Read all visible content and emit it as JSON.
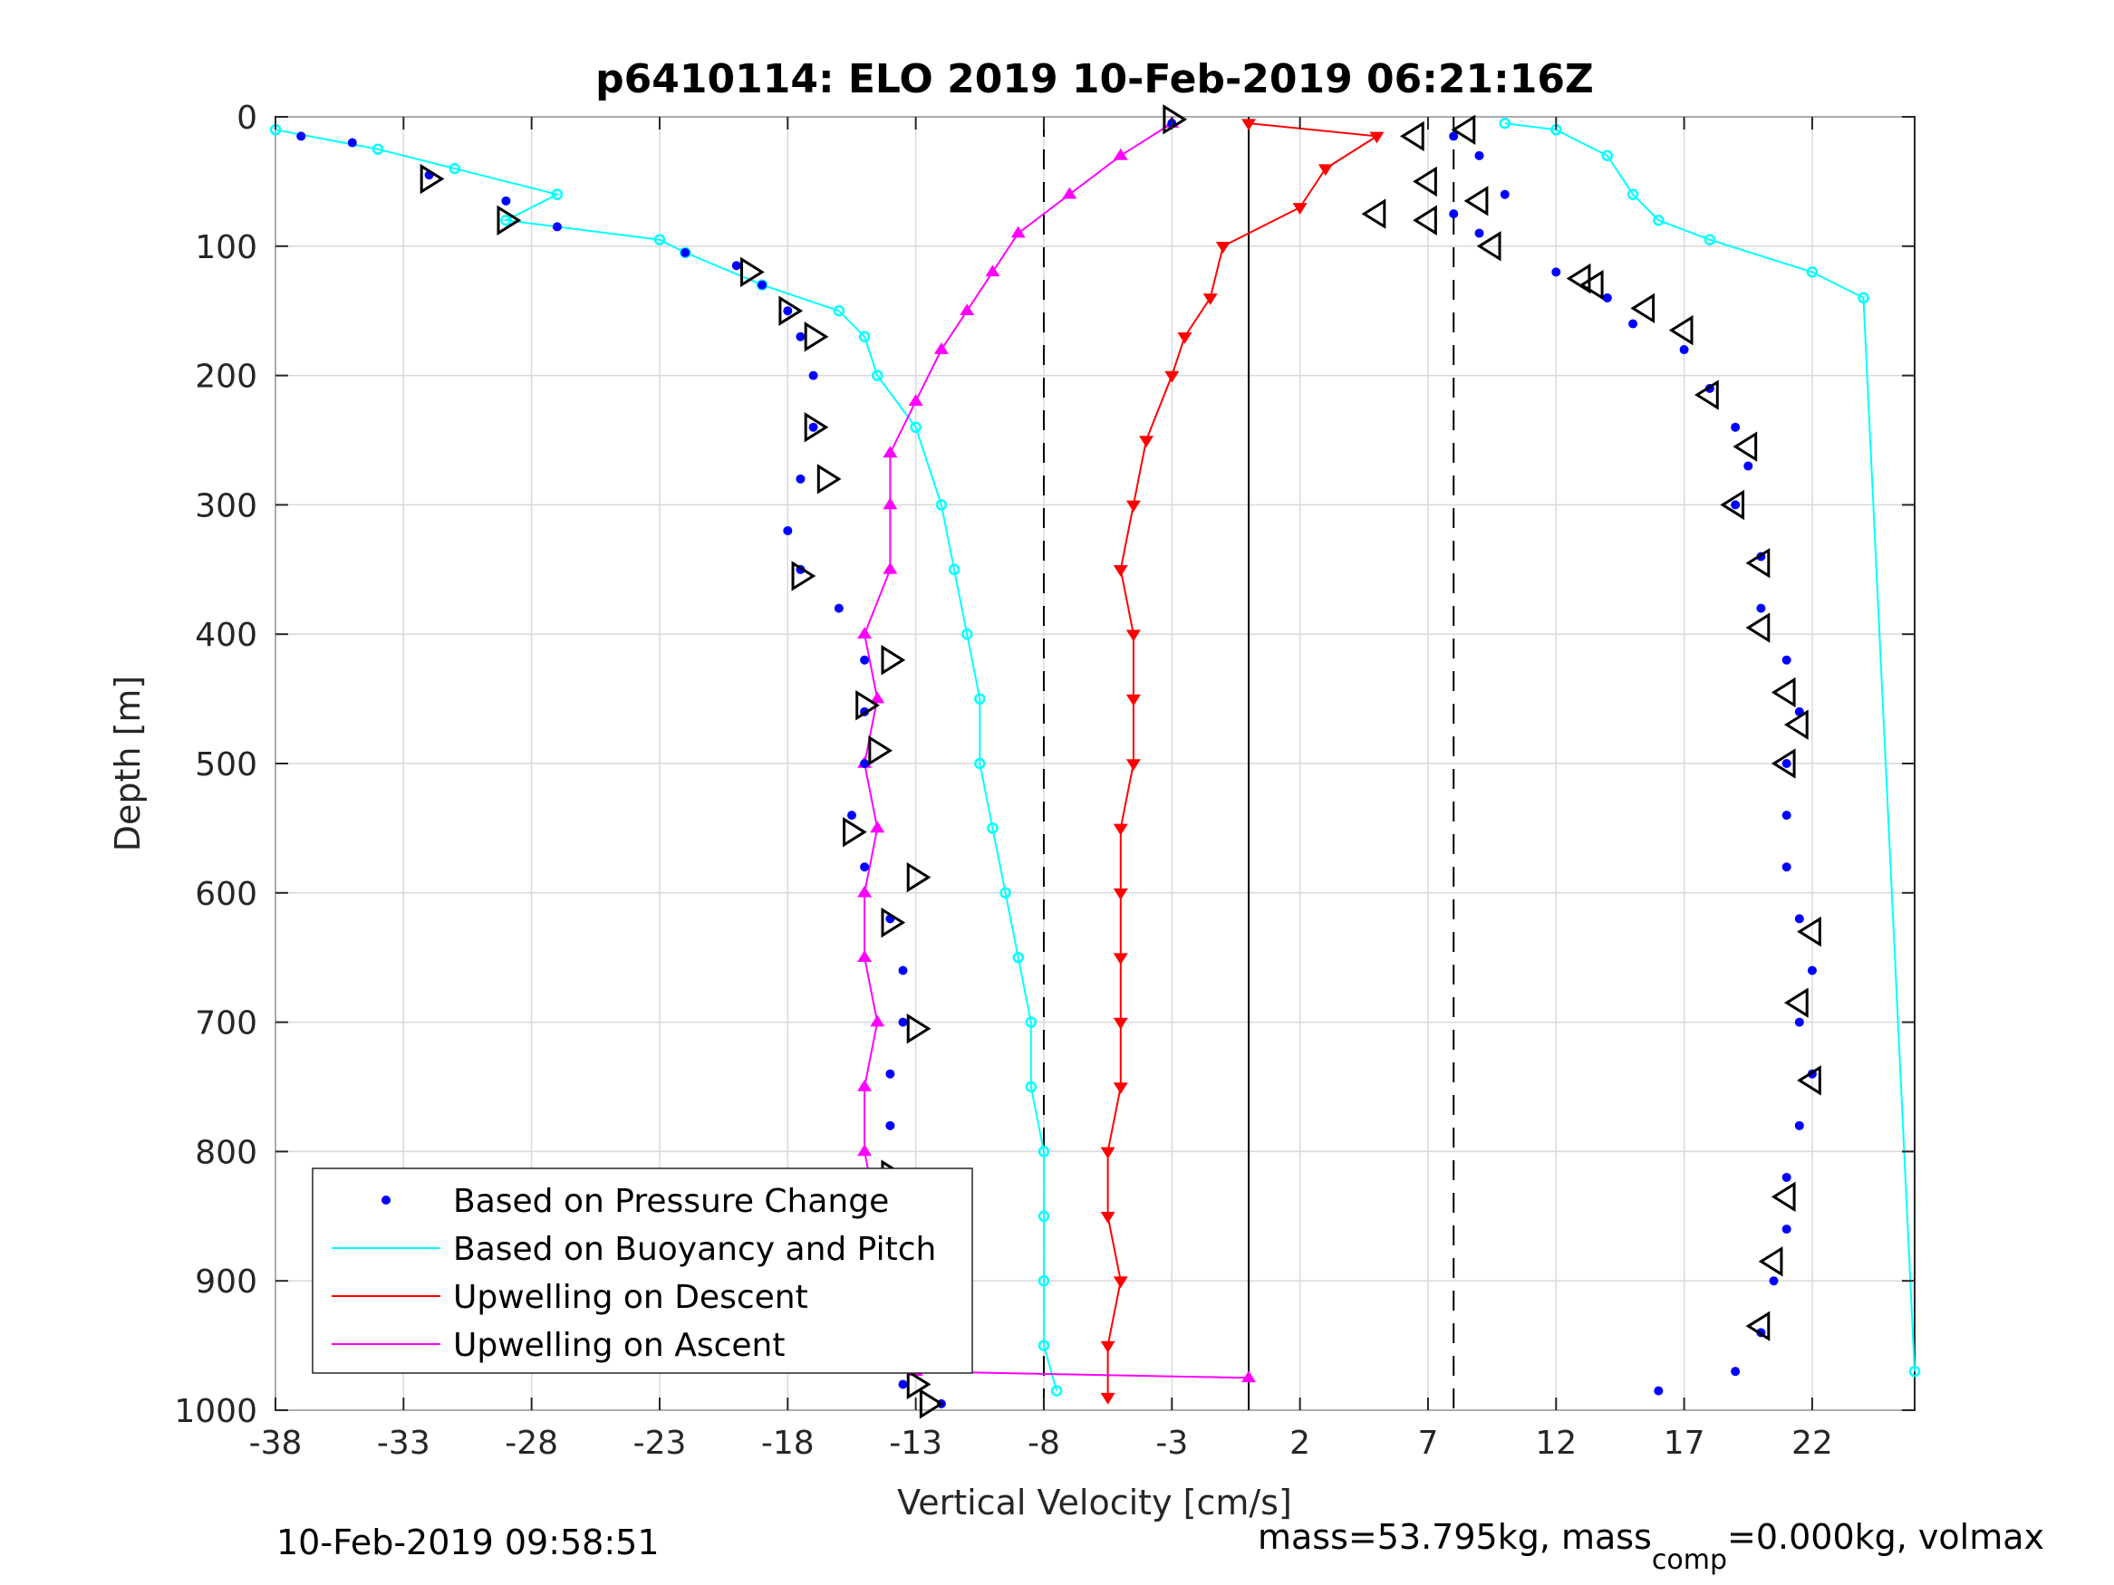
{
  "chart_data": {
    "type": "scatter",
    "title": "p6410114: ELO 2019 10-Feb-2019 06:21:16Z",
    "xlabel": "Vertical Velocity [cm/s]",
    "ylabel": "Depth [m]",
    "xlim": [
      -38,
      26
    ],
    "ylim": [
      0,
      1000
    ],
    "y_reversed": true,
    "grid": true,
    "x_ticks": [
      -38,
      -33,
      -28,
      -23,
      -18,
      -13,
      -8,
      -3,
      2,
      7,
      12,
      17,
      22
    ],
    "y_ticks": [
      0,
      100,
      200,
      300,
      400,
      500,
      600,
      700,
      800,
      900,
      1000
    ],
    "reference_lines": [
      {
        "x": -8,
        "style": "dashed"
      },
      {
        "x": 0,
        "style": "solid"
      },
      {
        "x": 8,
        "style": "dashed"
      }
    ],
    "legend_position": "bottom-left",
    "series": [
      {
        "name": "Based on Pressure Change",
        "color": "#0000ff",
        "marker": "dot",
        "descent": [
          [
            -37,
            15
          ],
          [
            -35,
            20
          ],
          [
            -32,
            45
          ],
          [
            -29,
            65
          ],
          [
            -27,
            85
          ],
          [
            -22,
            105
          ],
          [
            -20,
            115
          ],
          [
            -19,
            130
          ],
          [
            -18,
            150
          ],
          [
            -17.5,
            170
          ],
          [
            -17,
            200
          ],
          [
            -17,
            240
          ],
          [
            -17.5,
            280
          ],
          [
            -18,
            320
          ],
          [
            -17.5,
            350
          ],
          [
            -16,
            380
          ],
          [
            -15,
            420
          ],
          [
            -15,
            460
          ],
          [
            -15,
            500
          ],
          [
            -15.5,
            540
          ],
          [
            -15,
            580
          ],
          [
            -14,
            620
          ],
          [
            -13.5,
            660
          ],
          [
            -13.5,
            700
          ],
          [
            -14,
            740
          ],
          [
            -14,
            780
          ],
          [
            -14,
            820
          ],
          [
            -13.5,
            860
          ],
          [
            -13.5,
            900
          ],
          [
            -14,
            940
          ],
          [
            -13.5,
            980
          ],
          [
            -12,
            995
          ]
        ],
        "ascent": [
          [
            -3,
            5
          ],
          [
            8,
            15
          ],
          [
            9,
            30
          ],
          [
            10,
            60
          ],
          [
            8,
            75
          ],
          [
            9,
            90
          ],
          [
            12,
            120
          ],
          [
            14,
            140
          ],
          [
            15,
            160
          ],
          [
            17,
            180
          ],
          [
            18,
            210
          ],
          [
            19,
            240
          ],
          [
            19.5,
            270
          ],
          [
            19,
            300
          ],
          [
            20,
            340
          ],
          [
            20,
            380
          ],
          [
            21,
            420
          ],
          [
            21.5,
            460
          ],
          [
            21,
            500
          ],
          [
            21,
            540
          ],
          [
            21,
            580
          ],
          [
            21.5,
            620
          ],
          [
            22,
            660
          ],
          [
            21.5,
            700
          ],
          [
            22,
            740
          ],
          [
            21.5,
            780
          ],
          [
            21,
            820
          ],
          [
            21,
            860
          ],
          [
            20.5,
            900
          ],
          [
            20,
            940
          ],
          [
            19,
            970
          ],
          [
            16,
            985
          ]
        ],
        "triangles": [
          [
            -3,
            2
          ],
          [
            6.5,
            15
          ],
          [
            8.5,
            10
          ],
          [
            7,
            50
          ],
          [
            9,
            65
          ],
          [
            5,
            75
          ],
          [
            7,
            80
          ],
          [
            9.5,
            100
          ],
          [
            -32,
            48
          ],
          [
            -29,
            80
          ],
          [
            -19.5,
            120
          ],
          [
            -18,
            150
          ],
          [
            -17,
            170
          ],
          [
            -17,
            240
          ],
          [
            -16.5,
            280
          ],
          [
            -17.5,
            355
          ],
          [
            -14,
            420
          ],
          [
            -15,
            455
          ],
          [
            -14.5,
            490
          ],
          [
            -15.5,
            553
          ],
          [
            -13,
            588
          ],
          [
            -14,
            623
          ],
          [
            -13,
            705
          ],
          [
            -14,
            818
          ],
          [
            -12.5,
            900
          ],
          [
            -13,
            980
          ],
          [
            -12.5,
            995
          ],
          [
            13,
            125
          ],
          [
            13.5,
            130
          ],
          [
            15.5,
            148
          ],
          [
            17,
            165
          ],
          [
            18,
            215
          ],
          [
            19.5,
            255
          ],
          [
            19,
            300
          ],
          [
            20,
            345
          ],
          [
            20,
            395
          ],
          [
            21,
            445
          ],
          [
            21.5,
            470
          ],
          [
            21,
            500
          ],
          [
            22,
            630
          ],
          [
            21.5,
            685
          ],
          [
            22,
            745
          ],
          [
            21,
            835
          ],
          [
            20.5,
            885
          ],
          [
            20,
            935
          ]
        ]
      },
      {
        "name": "Based on Buoyancy and Pitch",
        "color": "#00ffff",
        "marker": "circle",
        "descent": [
          [
            -38,
            10
          ],
          [
            -34,
            25
          ],
          [
            -31,
            40
          ],
          [
            -27,
            60
          ],
          [
            -29,
            80
          ],
          [
            -23,
            95
          ],
          [
            -22,
            105
          ],
          [
            -19,
            130
          ],
          [
            -16,
            150
          ],
          [
            -15,
            170
          ],
          [
            -14.5,
            200
          ],
          [
            -13,
            240
          ],
          [
            -12,
            300
          ],
          [
            -11.5,
            350
          ],
          [
            -11,
            400
          ],
          [
            -10.5,
            450
          ],
          [
            -10.5,
            500
          ],
          [
            -10,
            550
          ],
          [
            -9.5,
            600
          ],
          [
            -9,
            650
          ],
          [
            -8.5,
            700
          ],
          [
            -8.5,
            750
          ],
          [
            -8,
            800
          ],
          [
            -8,
            850
          ],
          [
            -8,
            900
          ],
          [
            -8,
            950
          ],
          [
            -7.5,
            985
          ]
        ],
        "ascent": [
          [
            26,
            970
          ],
          [
            24,
            140
          ],
          [
            22,
            120
          ],
          [
            18,
            95
          ],
          [
            16,
            80
          ],
          [
            15,
            60
          ],
          [
            14,
            30
          ],
          [
            12,
            10
          ],
          [
            10,
            5
          ]
        ]
      },
      {
        "name": "Upwelling on Descent",
        "color": "#ff0000",
        "marker": "triangle-down",
        "values": [
          [
            0,
            5
          ],
          [
            5,
            15
          ],
          [
            3,
            40
          ],
          [
            2,
            70
          ],
          [
            -1,
            100
          ],
          [
            -1.5,
            140
          ],
          [
            -2.5,
            170
          ],
          [
            -3,
            200
          ],
          [
            -4,
            250
          ],
          [
            -4.5,
            300
          ],
          [
            -5,
            350
          ],
          [
            -4.5,
            400
          ],
          [
            -4.5,
            450
          ],
          [
            -4.5,
            500
          ],
          [
            -5,
            550
          ],
          [
            -5,
            600
          ],
          [
            -5,
            650
          ],
          [
            -5,
            700
          ],
          [
            -5,
            750
          ],
          [
            -5.5,
            800
          ],
          [
            -5.5,
            850
          ],
          [
            -5,
            900
          ],
          [
            -5.5,
            950
          ],
          [
            -5.5,
            990
          ]
        ]
      },
      {
        "name": "Upwelling on Ascent",
        "color": "#ff00ff",
        "marker": "triangle-up",
        "values": [
          [
            -3,
            5
          ],
          [
            -5,
            30
          ],
          [
            -7,
            60
          ],
          [
            -9,
            90
          ],
          [
            -10,
            120
          ],
          [
            -11,
            150
          ],
          [
            -12,
            180
          ],
          [
            -13,
            220
          ],
          [
            -14,
            260
          ],
          [
            -14,
            300
          ],
          [
            -14,
            350
          ],
          [
            -15,
            400
          ],
          [
            -14.5,
            450
          ],
          [
            -15,
            500
          ],
          [
            -14.5,
            550
          ],
          [
            -15,
            600
          ],
          [
            -15,
            650
          ],
          [
            -14.5,
            700
          ],
          [
            -15,
            750
          ],
          [
            -15,
            800
          ],
          [
            -14.5,
            850
          ],
          [
            -14,
            900
          ],
          [
            -14,
            950
          ],
          [
            -13,
            970
          ],
          [
            0,
            975
          ]
        ]
      }
    ]
  },
  "footer": {
    "timestamp": "10-Feb-2019 09:58:51",
    "mass_prefix": "mass=53.795kg, mass",
    "mass_sub": "comp",
    "mass_suffix": "=0.000kg, volmax"
  }
}
